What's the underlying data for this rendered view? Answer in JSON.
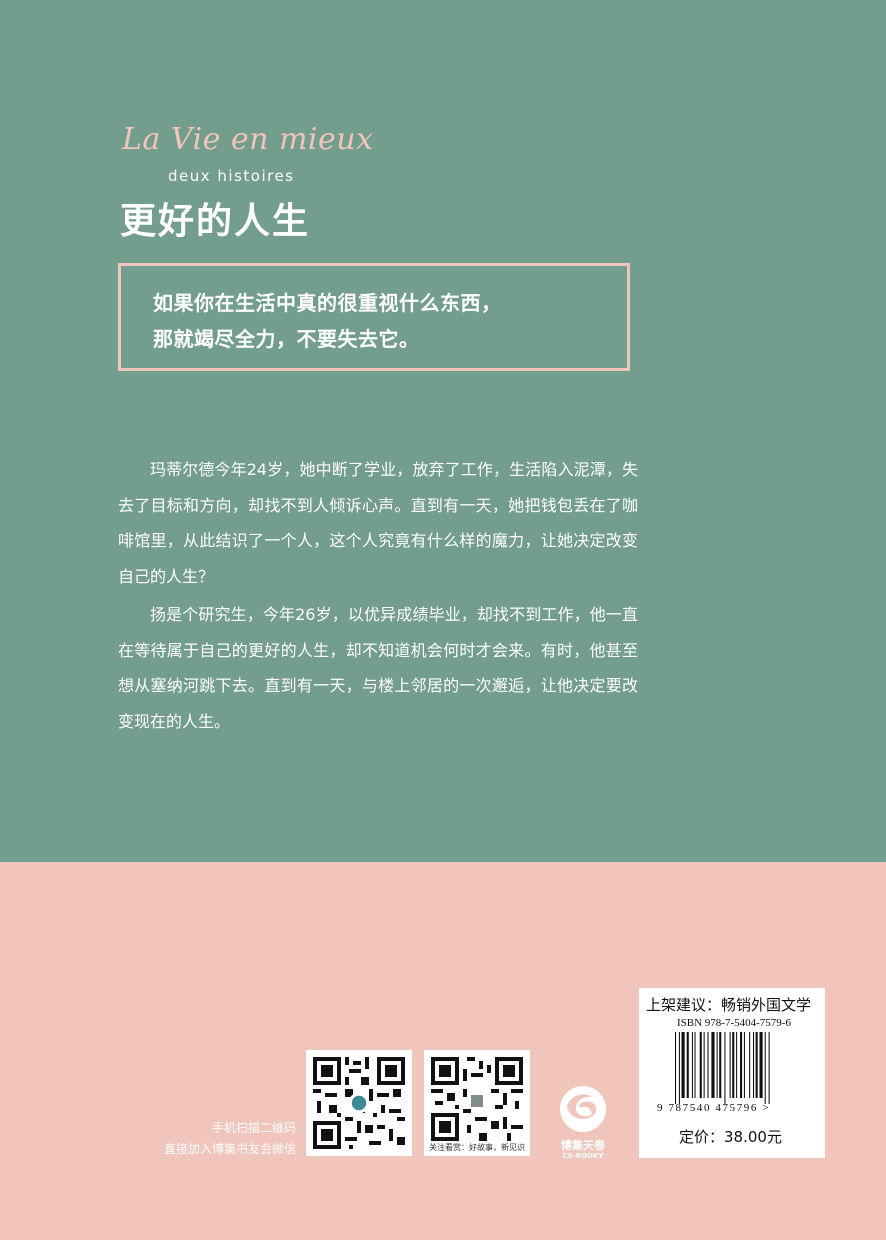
{
  "cover": {
    "script_title": "La Vie en mieux",
    "subtitle_fr": "deux histoires",
    "title_cn": "更好的人生",
    "quote": {
      "line1": "如果你在生活中真的很重视什么东西，",
      "line2": "那就竭尽全力，不要失去它。"
    },
    "blurb": {
      "p1": "玛蒂尔德今年24岁，她中断了学业，放弃了工作，生活陷入泥潭，失去了目标和方向，却找不到人倾诉心声。直到有一天，她把钱包丢在了咖啡馆里，从此结识了一个人，这个人究竟有什么样的魔力，让她决定改变自己的人生？",
      "p2": "扬是个研究生，今年26岁，以优异成绩毕业，却找不到工作，他一直在等待属于自己的更好的人生，却不知道机会何时才会来。有时，他甚至想从塞纳河跳下去。直到有一天，与楼上邻居的一次邂逅，让他决定要改变现在的人生。"
    },
    "colors": {
      "green": "#739d8c",
      "pink": "#f0c5bb"
    }
  },
  "back_info": {
    "scan_line1": "手机扫描二维码",
    "scan_line2": "直接加入博集书友会微信",
    "qr2_caption": "关注看赏：好故事，新见识",
    "publisher_logo_text": "博集天卷",
    "publisher_logo_sub": "CS-BOOKY",
    "shelf_suggestion": "上架建议：畅销外国文学",
    "isbn": "ISBN 978-7-5404-7579-6",
    "barcode_digits": "9 787540 475796 >",
    "price": "定价：38.00元"
  }
}
